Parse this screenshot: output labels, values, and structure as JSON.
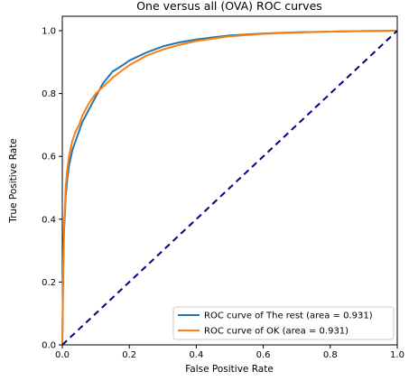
{
  "chart_data": {
    "type": "line",
    "title": "One versus all (OVA) ROC curves",
    "xlabel": "False Positive Rate",
    "ylabel": "True Positive Rate",
    "xlim": [
      0.0,
      1.0
    ],
    "ylim": [
      0.0,
      1.0
    ],
    "xticks": [
      "0.0",
      "0.2",
      "0.4",
      "0.6",
      "0.8",
      "1.0"
    ],
    "yticks": [
      "0.0",
      "0.2",
      "0.4",
      "0.6",
      "0.8",
      "1.0"
    ],
    "grid": false,
    "legend_position": "lower-right",
    "series": [
      {
        "name": "ROC curve of The rest (area = 0.931)",
        "color": "#1f77b4",
        "x": [
          0.0,
          0.003,
          0.005,
          0.008,
          0.01,
          0.015,
          0.02,
          0.03,
          0.04,
          0.05,
          0.06,
          0.08,
          0.1,
          0.12,
          0.15,
          0.18,
          0.2,
          0.25,
          0.3,
          0.35,
          0.4,
          0.45,
          0.5,
          0.6,
          0.7,
          0.8,
          0.9,
          1.0
        ],
        "y": [
          0.0,
          0.25,
          0.36,
          0.42,
          0.47,
          0.53,
          0.57,
          0.62,
          0.65,
          0.68,
          0.71,
          0.75,
          0.79,
          0.83,
          0.87,
          0.89,
          0.905,
          0.93,
          0.95,
          0.963,
          0.972,
          0.979,
          0.985,
          0.991,
          0.995,
          0.997,
          0.999,
          1.0
        ]
      },
      {
        "name": "ROC curve of OK (area = 0.931)",
        "color": "#ff7f0e",
        "x": [
          0.0,
          0.003,
          0.005,
          0.008,
          0.01,
          0.015,
          0.02,
          0.03,
          0.04,
          0.05,
          0.06,
          0.08,
          0.1,
          0.12,
          0.15,
          0.18,
          0.2,
          0.25,
          0.3,
          0.35,
          0.4,
          0.45,
          0.5,
          0.6,
          0.7,
          0.8,
          0.9,
          1.0
        ],
        "y": [
          0.0,
          0.27,
          0.38,
          0.44,
          0.5,
          0.56,
          0.6,
          0.65,
          0.68,
          0.7,
          0.73,
          0.77,
          0.8,
          0.82,
          0.85,
          0.875,
          0.89,
          0.92,
          0.94,
          0.955,
          0.967,
          0.975,
          0.982,
          0.99,
          0.994,
          0.997,
          0.999,
          1.0
        ]
      },
      {
        "name": "",
        "color": "#000080",
        "dashed": true,
        "x": [
          0.0,
          1.0
        ],
        "y": [
          0.0,
          1.0
        ]
      }
    ]
  }
}
